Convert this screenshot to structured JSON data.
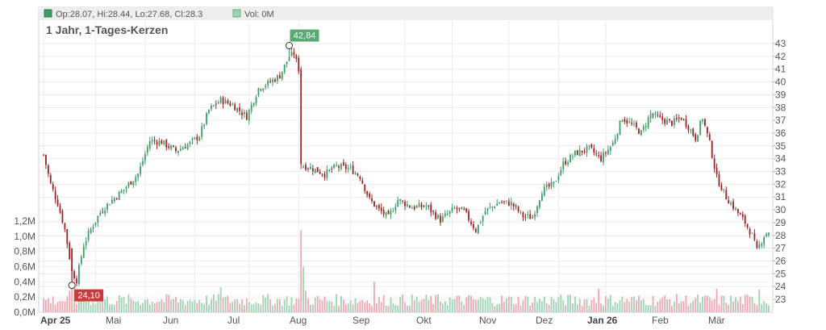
{
  "info": {
    "ohlc_text": "Op:28.07, Hi:28.44, Lo:27.68, Cl:28.3",
    "vol_text": "Vol: 0M"
  },
  "chart_data": {
    "type": "candlestick",
    "title": "1 Jahr, 1-Tages-Kerzen",
    "price_axis": {
      "ticks": [
        23,
        24,
        25,
        26,
        27,
        28,
        29,
        30,
        31,
        32,
        33,
        34,
        35,
        36,
        37,
        38,
        39,
        40,
        41,
        42,
        43
      ],
      "range": [
        22.3,
        44.0
      ]
    },
    "volume_axis": {
      "ticks": [
        0,
        0.2,
        0.4,
        0.6,
        0.8,
        1.0,
        1.2
      ],
      "tick_labels": [
        "0,0M",
        "0,2M",
        "0,4M",
        "0,6M",
        "0,8M",
        "1,0M",
        "1,2M"
      ],
      "range": [
        0,
        1.2
      ]
    },
    "months": [
      "Apr 25",
      "Mai",
      "Jun",
      "Jul",
      "Aug",
      "Sep",
      "Okt",
      "Nov",
      "Dez",
      "Jan 26",
      "Feb",
      "Mär"
    ],
    "bold_months": [
      "Apr 25",
      "Jan 26"
    ],
    "price_anchors": [
      {
        "d": 0,
        "p": 34.3
      },
      {
        "d": 3,
        "p": 32.0
      },
      {
        "d": 6,
        "p": 30.5
      },
      {
        "d": 9,
        "p": 28.5
      },
      {
        "d": 12,
        "p": 25.2
      },
      {
        "d": 14,
        "p": 24.5
      },
      {
        "d": 17,
        "p": 27.3
      },
      {
        "d": 20,
        "p": 28.5
      },
      {
        "d": 24,
        "p": 29.8
      },
      {
        "d": 28,
        "p": 30.6
      },
      {
        "d": 34,
        "p": 31.6
      },
      {
        "d": 40,
        "p": 32.8
      },
      {
        "d": 45,
        "p": 35.4
      },
      {
        "d": 50,
        "p": 35.3
      },
      {
        "d": 56,
        "p": 34.6
      },
      {
        "d": 62,
        "p": 35.2
      },
      {
        "d": 66,
        "p": 35.8
      },
      {
        "d": 70,
        "p": 37.8
      },
      {
        "d": 75,
        "p": 38.6
      },
      {
        "d": 80,
        "p": 38.2
      },
      {
        "d": 86,
        "p": 37.3
      },
      {
        "d": 91,
        "p": 39.5
      },
      {
        "d": 96,
        "p": 40.0
      },
      {
        "d": 100,
        "p": 40.5
      },
      {
        "d": 104,
        "p": 42.0
      },
      {
        "d": 106,
        "p": 42.2
      },
      {
        "d": 108,
        "p": 41.0
      },
      {
        "d": 109,
        "p": 33.5
      },
      {
        "d": 113,
        "p": 33.3
      },
      {
        "d": 119,
        "p": 32.8
      },
      {
        "d": 124,
        "p": 33.4
      },
      {
        "d": 130,
        "p": 33.2
      },
      {
        "d": 134,
        "p": 32.6
      },
      {
        "d": 138,
        "p": 30.8
      },
      {
        "d": 142,
        "p": 30.0
      },
      {
        "d": 146,
        "p": 29.4
      },
      {
        "d": 150,
        "p": 30.8
      },
      {
        "d": 156,
        "p": 30.2
      },
      {
        "d": 162,
        "p": 30.3
      },
      {
        "d": 168,
        "p": 29.2
      },
      {
        "d": 174,
        "p": 30.1
      },
      {
        "d": 178,
        "p": 29.9
      },
      {
        "d": 183,
        "p": 28.4
      },
      {
        "d": 187,
        "p": 29.9
      },
      {
        "d": 193,
        "p": 30.6
      },
      {
        "d": 198,
        "p": 30.5
      },
      {
        "d": 203,
        "p": 29.5
      },
      {
        "d": 207,
        "p": 29.4
      },
      {
        "d": 211,
        "p": 31.5
      },
      {
        "d": 216,
        "p": 32.0
      },
      {
        "d": 220,
        "p": 33.6
      },
      {
        "d": 225,
        "p": 34.4
      },
      {
        "d": 231,
        "p": 34.8
      },
      {
        "d": 236,
        "p": 34.0
      },
      {
        "d": 241,
        "p": 35.2
      },
      {
        "d": 245,
        "p": 37.2
      },
      {
        "d": 250,
        "p": 36.5
      },
      {
        "d": 253,
        "p": 36.0
      },
      {
        "d": 257,
        "p": 37.5
      },
      {
        "d": 261,
        "p": 37.1
      },
      {
        "d": 266,
        "p": 36.8
      },
      {
        "d": 270,
        "p": 37.2
      },
      {
        "d": 273,
        "p": 36.5
      },
      {
        "d": 276,
        "p": 35.6
      },
      {
        "d": 279,
        "p": 37.2
      },
      {
        "d": 282,
        "p": 35.2
      },
      {
        "d": 285,
        "p": 32.5
      },
      {
        "d": 289,
        "p": 31.0
      },
      {
        "d": 293,
        "p": 30.0
      },
      {
        "d": 297,
        "p": 29.0
      },
      {
        "d": 300,
        "p": 28.0
      },
      {
        "d": 302,
        "p": 26.8
      },
      {
        "d": 305,
        "p": 28.0
      },
      {
        "d": 307,
        "p": 28.3
      }
    ],
    "annotations": [
      {
        "label": "42,84",
        "day": 104,
        "price": 42.84,
        "color": "#5aa874"
      },
      {
        "label": "24,10",
        "day": 12,
        "price": 24.1,
        "color": "#cc3b3b"
      }
    ],
    "colors": {
      "up": "#3f9e68",
      "down": "#9e2222",
      "vol_up": "#9fd3b3",
      "vol_down": "#f0a8b0"
    }
  }
}
